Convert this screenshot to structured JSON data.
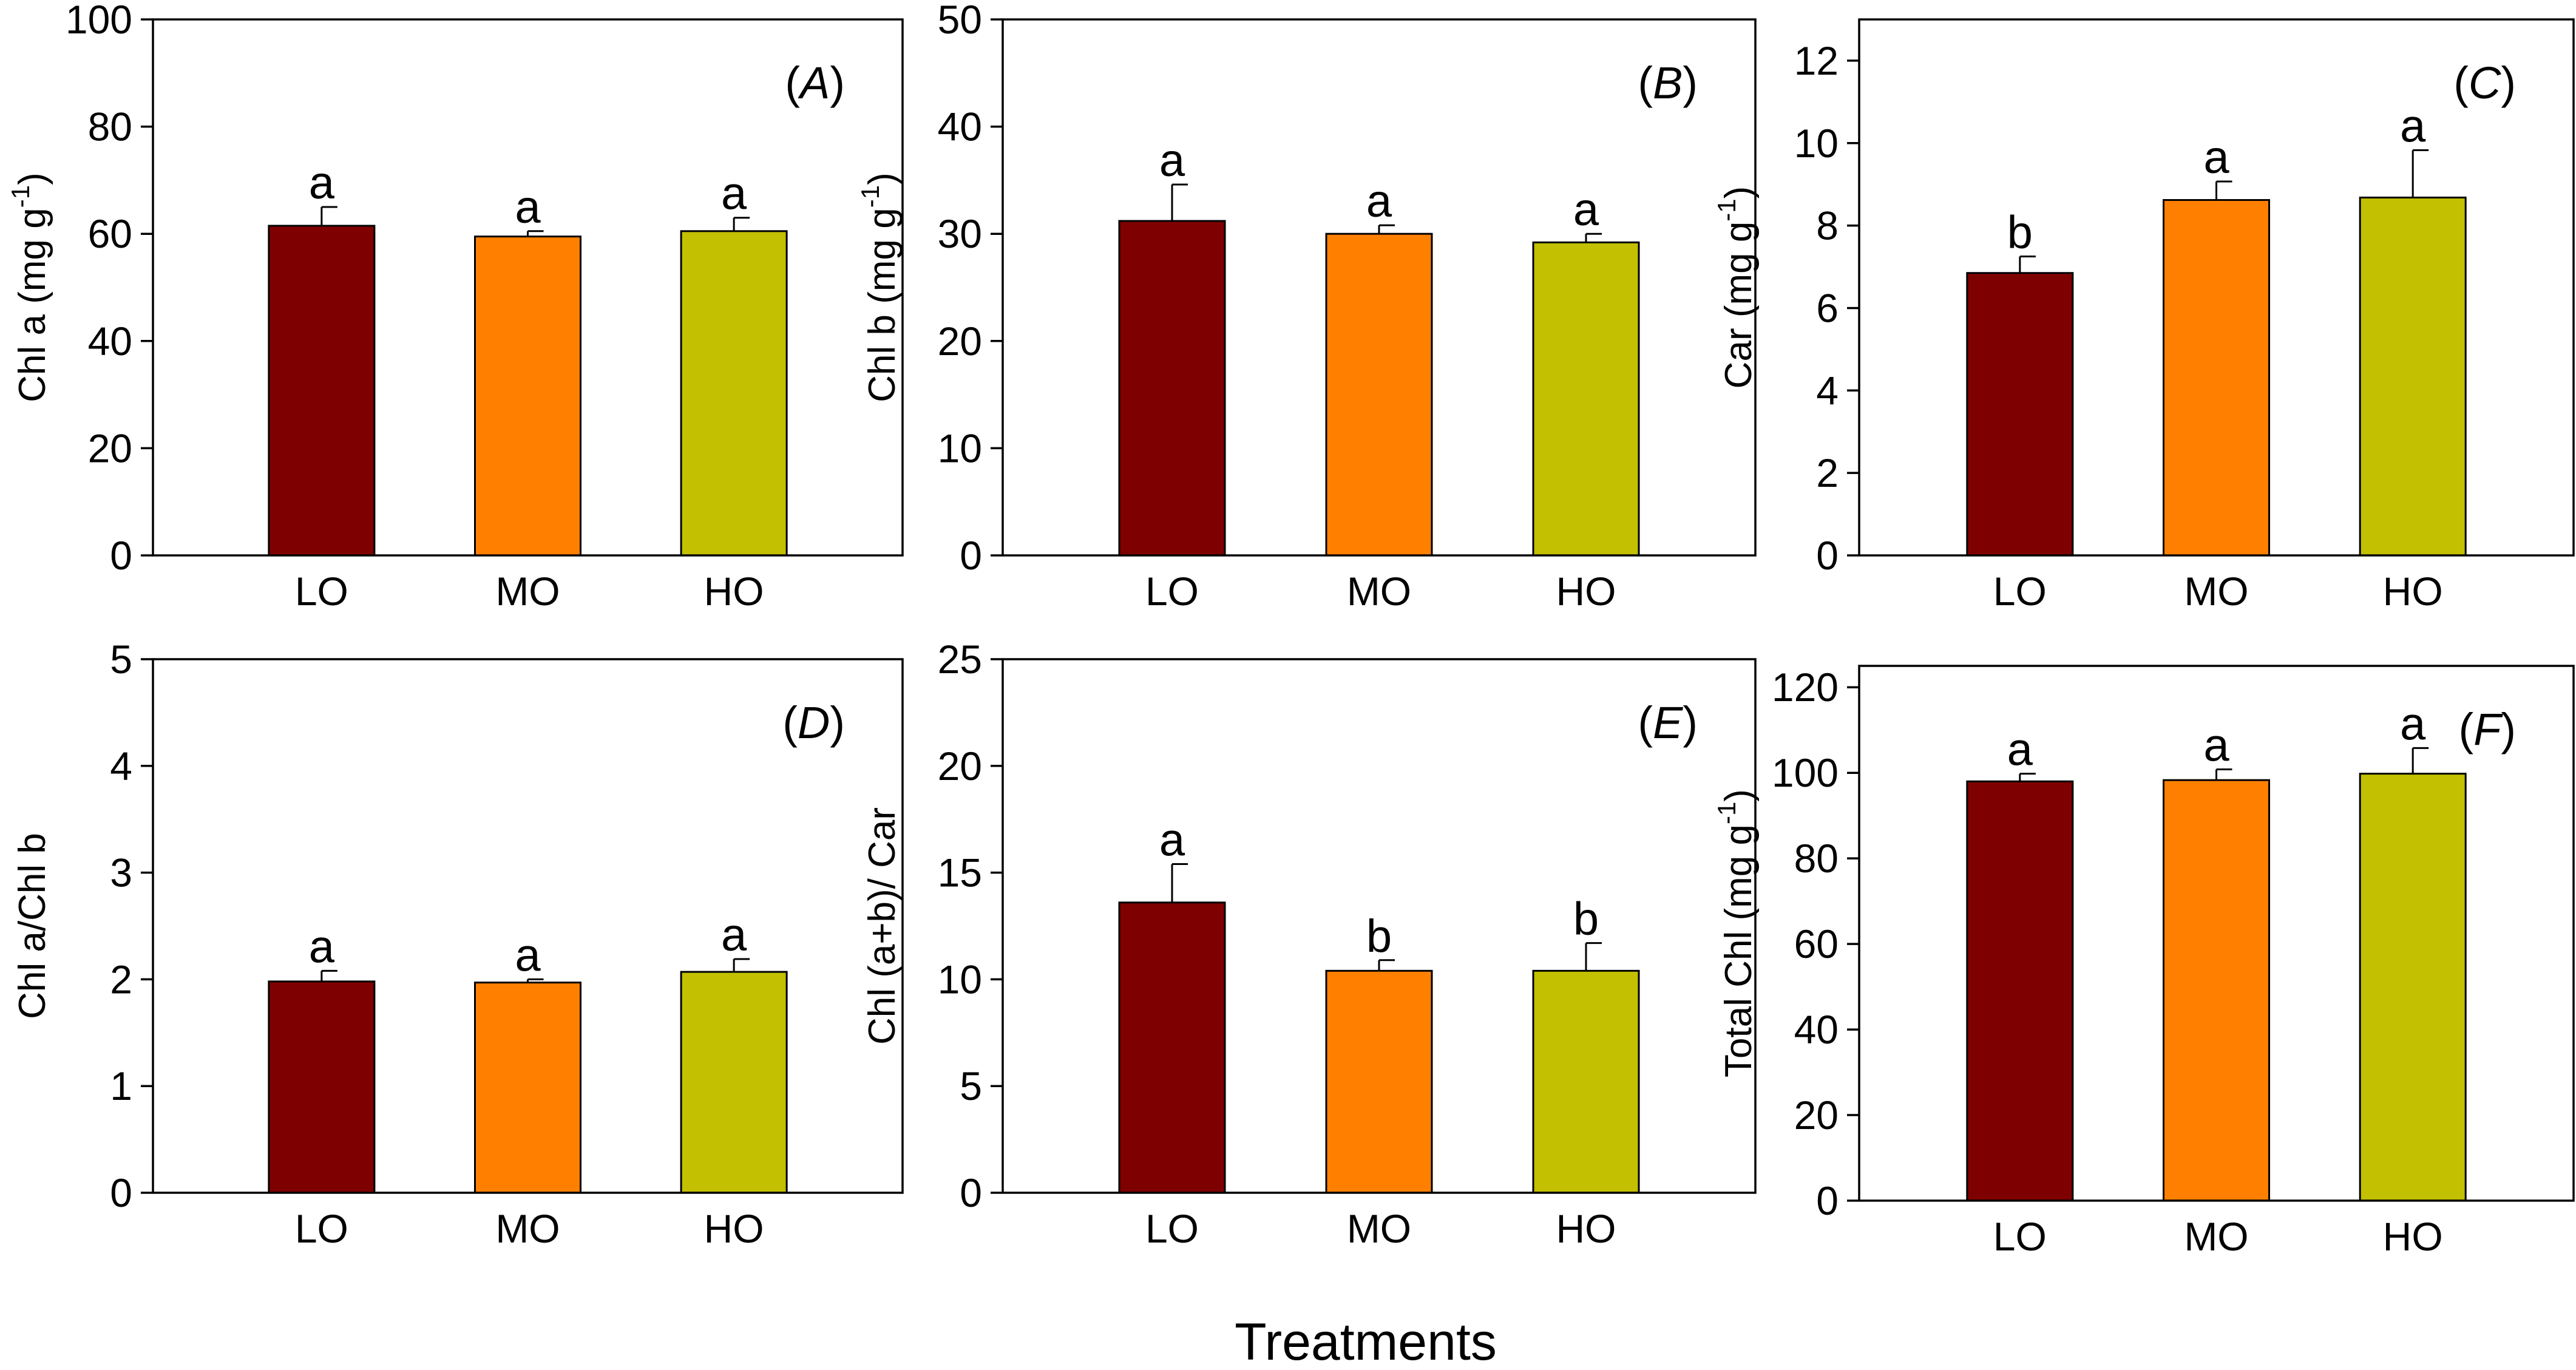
{
  "colors": {
    "LO": "#7f0000",
    "MO": "#ff8000",
    "HO": "#c2c000",
    "axis": "#000000",
    "background": "#ffffff"
  },
  "chart_data": {
    "type": "bar",
    "x_title": "Treatments",
    "panels": [
      {
        "id": "A",
        "panel_label_prefix": "(",
        "panel_label_letter": "A",
        "panel_label_suffix": ")",
        "ylabel": "Chl a (mg g",
        "ylabel_sup": "-1",
        "ylabel_tail": ")",
        "ylim": [
          0,
          100
        ],
        "ticks": [
          0,
          20,
          40,
          60,
          80,
          100
        ],
        "categories": [
          "LO",
          "MO",
          "HO"
        ],
        "values": [
          61.5,
          59.5,
          60.5
        ],
        "errors": [
          3.5,
          1.0,
          2.5
        ],
        "letters": [
          "a",
          "a",
          "a"
        ]
      },
      {
        "id": "B",
        "panel_label_prefix": "(",
        "panel_label_letter": "B",
        "panel_label_suffix": ")",
        "ylabel": "Chl b (mg g",
        "ylabel_sup": "-1",
        "ylabel_tail": ")",
        "ylim": [
          0,
          50
        ],
        "ticks": [
          0,
          10,
          20,
          30,
          40,
          50
        ],
        "categories": [
          "LO",
          "MO",
          "HO"
        ],
        "values": [
          31.2,
          30.0,
          29.2
        ],
        "errors": [
          3.4,
          0.8,
          0.8
        ],
        "letters": [
          "a",
          "a",
          "a"
        ]
      },
      {
        "id": "C",
        "panel_label_prefix": "(",
        "panel_label_letter": "C",
        "panel_label_suffix": ")",
        "ylabel": "Car (mg g",
        "ylabel_sup": "-1",
        "ylabel_tail": ")",
        "ylim": [
          0,
          13
        ],
        "ticks": [
          0,
          2,
          4,
          6,
          8,
          10,
          12
        ],
        "categories": [
          "LO",
          "MO",
          "HO"
        ],
        "values": [
          6.85,
          8.62,
          8.68
        ],
        "errors": [
          0.4,
          0.45,
          1.15
        ],
        "letters": [
          "b",
          "a",
          "a"
        ]
      },
      {
        "id": "D",
        "panel_label_prefix": "(",
        "panel_label_letter": "D",
        "panel_label_suffix": ")",
        "ylabel": "Chl a/Chl b",
        "ylabel_sup": "",
        "ylabel_tail": "",
        "ylim": [
          0,
          5
        ],
        "ticks": [
          0,
          1,
          2,
          3,
          4,
          5
        ],
        "categories": [
          "LO",
          "MO",
          "HO"
        ],
        "values": [
          1.98,
          1.97,
          2.07
        ],
        "errors": [
          0.1,
          0.03,
          0.12
        ],
        "letters": [
          "a",
          "a",
          "a"
        ]
      },
      {
        "id": "E",
        "panel_label_prefix": "(",
        "panel_label_letter": "E",
        "panel_label_suffix": ")",
        "ylabel": "Chl (a+b)/ Car",
        "ylabel_sup": "",
        "ylabel_tail": "",
        "ylim": [
          0,
          25
        ],
        "ticks": [
          0,
          5,
          10,
          15,
          20,
          25
        ],
        "categories": [
          "LO",
          "MO",
          "HO"
        ],
        "values": [
          13.6,
          10.4,
          10.4
        ],
        "errors": [
          1.8,
          0.5,
          1.3
        ],
        "letters": [
          "a",
          "b",
          "b"
        ]
      },
      {
        "id": "F",
        "panel_label_prefix": "(",
        "panel_label_letter": "F",
        "panel_label_suffix": ")",
        "ylabel": "Total Chl (mg g",
        "ylabel_sup": "-1",
        "ylabel_tail": ")",
        "ylim": [
          0,
          125
        ],
        "ticks": [
          0,
          20,
          40,
          60,
          80,
          100,
          120
        ],
        "categories": [
          "LO",
          "MO",
          "HO"
        ],
        "values": [
          98,
          98.3,
          99.8
        ],
        "errors": [
          1.8,
          2.5,
          6.0
        ],
        "letters": [
          "a",
          "a",
          "a"
        ]
      }
    ]
  }
}
